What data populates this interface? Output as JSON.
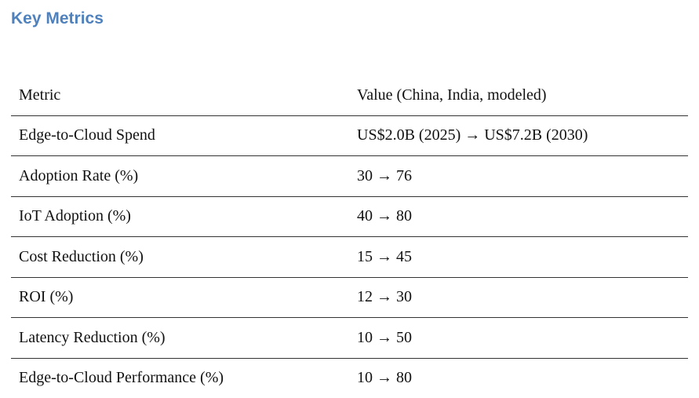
{
  "header": {
    "title": "Key Metrics"
  },
  "table": {
    "columns": [
      "Metric",
      "Value (China, India, modeled)"
    ],
    "rows": [
      [
        "Edge-to-Cloud Spend",
        "US$2.0B (2025) → US$7.2B (2030)"
      ],
      [
        "Adoption Rate (%)",
        "30 → 76"
      ],
      [
        "IoT Adoption (%)",
        "40 → 80"
      ],
      [
        "Cost Reduction (%)",
        "15 → 45"
      ],
      [
        "ROI (%)",
        "12 → 30"
      ],
      [
        "Latency Reduction (%)",
        "10 → 50"
      ],
      [
        "Edge-to-Cloud Performance (%)",
        "10 → 80"
      ]
    ]
  }
}
